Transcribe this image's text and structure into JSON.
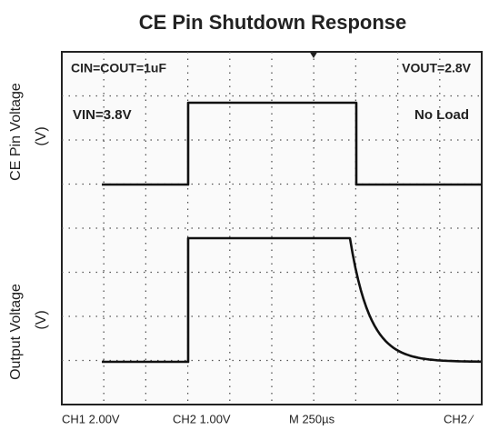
{
  "title": "CE Pin Shutdown Response",
  "y_labels": {
    "top": "CE Pin Voltage",
    "top_unit": "(V)",
    "bottom": "Output Voltage",
    "bottom_unit": "(V)"
  },
  "annotations": {
    "capacitors": "CIN=COUT=1uF",
    "vout": "VOUT=2.8V",
    "vin": "VIN=3.8V",
    "load": "No Load"
  },
  "footer": {
    "ch1": "CH1  2.00V",
    "ch2": "CH2  1.00V",
    "time": "M 250µs",
    "trigger": "CH2 ∕"
  }
}
